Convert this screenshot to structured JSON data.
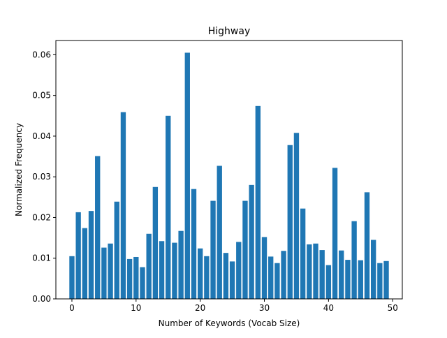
{
  "chart_data": {
    "type": "bar",
    "title": "Highway",
    "xlabel": "Number of Keywords (Vocab Size)",
    "ylabel": "Normalized Frequency",
    "x": [
      0,
      1,
      2,
      3,
      4,
      5,
      6,
      7,
      8,
      9,
      10,
      11,
      12,
      13,
      14,
      15,
      16,
      17,
      18,
      19,
      20,
      21,
      22,
      23,
      24,
      25,
      26,
      27,
      28,
      29,
      30,
      31,
      32,
      33,
      34,
      35,
      36,
      37,
      38,
      39,
      40,
      41,
      42,
      43,
      44,
      45,
      46,
      47,
      48,
      49
    ],
    "values": [
      0.0105,
      0.0213,
      0.0174,
      0.0216,
      0.0351,
      0.0126,
      0.0136,
      0.0239,
      0.0459,
      0.0098,
      0.0103,
      0.0078,
      0.016,
      0.0275,
      0.0142,
      0.045,
      0.0138,
      0.0167,
      0.0605,
      0.027,
      0.0124,
      0.0105,
      0.0241,
      0.0327,
      0.0113,
      0.0092,
      0.014,
      0.0241,
      0.028,
      0.0474,
      0.0152,
      0.0104,
      0.0088,
      0.0118,
      0.0378,
      0.0408,
      0.0222,
      0.0134,
      0.0136,
      0.012,
      0.0083,
      0.0322,
      0.0119,
      0.0096,
      0.0191,
      0.0095,
      0.0262,
      0.0145,
      0.0088,
      0.0093
    ],
    "xlim": [
      -2.5,
      51.5
    ],
    "ylim": [
      0,
      0.0635
    ],
    "xticks": [
      0,
      10,
      20,
      30,
      40,
      50
    ],
    "xtick_labels": [
      "0",
      "10",
      "20",
      "30",
      "40",
      "50"
    ],
    "yticks": [
      0,
      0.01,
      0.02,
      0.03,
      0.04,
      0.05,
      0.06
    ],
    "ytick_labels": [
      "0.00",
      "0.01",
      "0.02",
      "0.03",
      "0.04",
      "0.05",
      "0.06"
    ],
    "bar_color": "#1f77b4",
    "grid": false,
    "legend": "none"
  }
}
